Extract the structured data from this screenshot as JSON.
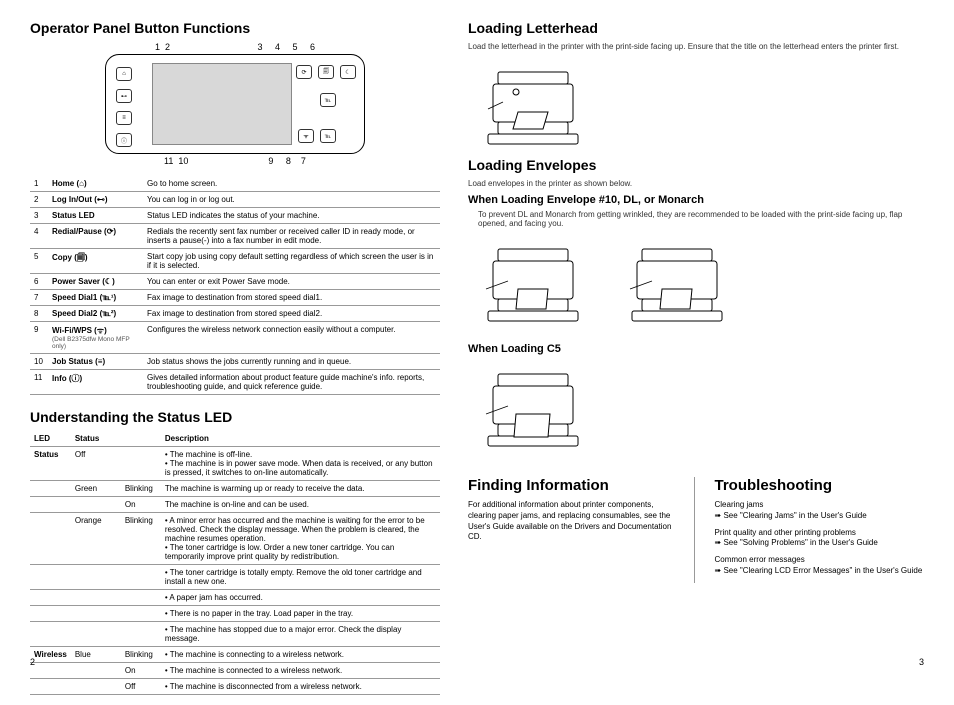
{
  "left": {
    "heading1": "Operator Panel Button Functions",
    "topNums": "1  2                                   3     4     5     6",
    "botNums": "11  10                                9     8    7",
    "functions": [
      {
        "n": "1",
        "name": "Home (⌂)",
        "desc": "Go to home screen."
      },
      {
        "n": "2",
        "name": "Log In/Out (⊷)",
        "desc": "You can log in or log out."
      },
      {
        "n": "3",
        "name": "Status LED",
        "desc": "Status LED indicates the status of your machine."
      },
      {
        "n": "4",
        "name": "Redial/Pause (⟳)",
        "desc": "Redials the recently sent fax number or received caller ID in ready mode, or inserts a pause(-) into a fax number in edit mode."
      },
      {
        "n": "5",
        "name": "Copy (🗐)",
        "desc": "Start copy job using copy default setting regardless of which screen the user is in if it is selected."
      },
      {
        "n": "6",
        "name": "Power Saver (☾)",
        "desc": "You can enter or exit Power Save mode."
      },
      {
        "n": "7",
        "name": "Speed Dial1 (℡¹)",
        "desc": "Fax image to destination from stored speed dial1."
      },
      {
        "n": "8",
        "name": "Speed Dial2 (℡²)",
        "desc": "Fax image to destination from stored speed dial2."
      },
      {
        "n": "9",
        "name": "Wi-Fi/WPS (ᯤ)",
        "desc": "Configures the wireless network connection easily without a computer.",
        "note": "(Dell B2375dfw Mono MFP only)"
      },
      {
        "n": "10",
        "name": "Job Status (≡)",
        "desc": "Job status shows the jobs currently running and in queue."
      },
      {
        "n": "11",
        "name": "Info (ⓘ)",
        "desc": "Gives detailed information about product feature guide machine's info. reports, troubleshooting guide, and quick reference guide."
      }
    ],
    "heading2": "Understanding the Status LED",
    "ledHeaders": {
      "c1": "LED",
      "c2": "Status",
      "c3": "",
      "c4": "Description"
    },
    "ledRows": [
      {
        "led": "Status",
        "s": "Off",
        "b": "",
        "d": "• The machine is off-line.\n• The machine is in power save mode. When data is received, or any button is pressed, it switches to on-line automatically."
      },
      {
        "led": "",
        "s": "Green",
        "b": "Blinking",
        "d": "The machine is warming up or ready to receive the data."
      },
      {
        "led": "",
        "s": "",
        "b": "On",
        "d": "The machine is on-line and can be used."
      },
      {
        "led": "",
        "s": "Orange",
        "b": "Blinking",
        "d": "• A minor error has occurred and the machine is waiting for the error to be resolved. Check the display message. When the problem is cleared, the machine resumes operation.\n• The toner cartridge is low. Order a new toner cartridge. You can temporarily improve print quality by redistribution."
      },
      {
        "led": "",
        "s": "",
        "b": "",
        "d": "• The toner cartridge is totally empty. Remove the old toner cartridge and install a new one."
      },
      {
        "led": "",
        "s": "",
        "b": "",
        "d": "• A paper jam has occurred."
      },
      {
        "led": "",
        "s": "",
        "b": "",
        "d": "• There is no paper in the tray. Load paper in the tray."
      },
      {
        "led": "",
        "s": "",
        "b": "",
        "d": "• The machine has stopped due to a major error. Check the display message."
      },
      {
        "led": "Wireless",
        "s": "Blue",
        "b": "Blinking",
        "d": "• The machine is connecting to a wireless network."
      },
      {
        "led": "",
        "s": "",
        "b": "On",
        "d": "• The machine is connected to a wireless network."
      },
      {
        "led": "",
        "s": "",
        "b": "Off",
        "d": "• The machine is disconnected from a wireless network."
      }
    ]
  },
  "right": {
    "h1": "Loading Letterhead",
    "h1sub": "Load the letterhead in the printer with the print-side facing up. Ensure that the title on the letterhead enters the printer first.",
    "h2": "Loading Envelopes",
    "h2sub": "Load envelopes in the printer as shown below.",
    "env1": "When Loading Envelope #10, DL, or Monarch",
    "env1sub": "To prevent DL and Monarch from getting wrinkled, they are recommended to be loaded with the print-side facing up, flap opened, and facing you.",
    "env2": "When Loading C5",
    "finding": {
      "h": "Finding Information",
      "p": "For additional information about printer components, clearing paper jams, and replacing consumables, see the User's Guide available on the Drivers and Documentation CD."
    },
    "trouble": {
      "h": "Troubleshooting",
      "l1": "Clearing jams",
      "l1b": "See \"Clearing Jams\" in the User's Guide",
      "l2": "Print quality and other printing problems",
      "l2b": "See \"Solving Problems\" in the User's Guide",
      "l3": "Common error messages",
      "l3b": "See \"Clearing LCD Error Messages\" in the User's Guide"
    }
  },
  "pageLeft": "2",
  "pageRight": "3"
}
